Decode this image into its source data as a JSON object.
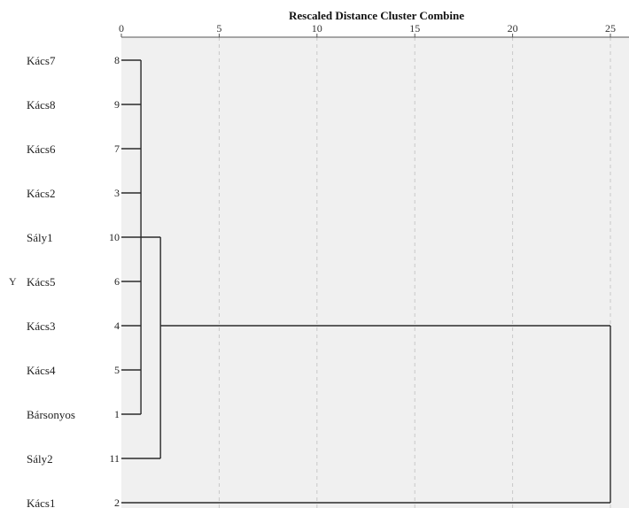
{
  "chart_data": {
    "type": "dendrogram",
    "title": "Rescaled Distance Cluster Combine",
    "y_axis_label": "Y",
    "x_ticks": [
      0,
      5,
      10,
      15,
      20,
      25
    ],
    "xlim": [
      0,
      25
    ],
    "grid": "vertical dashed",
    "leaves": [
      {
        "label": "Kács7",
        "case": 8
      },
      {
        "label": "Kács8",
        "case": 9
      },
      {
        "label": "Kács6",
        "case": 7
      },
      {
        "label": "Kács2",
        "case": 3
      },
      {
        "label": "Sály1",
        "case": 10
      },
      {
        "label": "Kács5",
        "case": 6
      },
      {
        "label": "Kács3",
        "case": 4
      },
      {
        "label": "Kács4",
        "case": 5
      },
      {
        "label": "Bársonyos",
        "case": 1
      },
      {
        "label": "Sály2",
        "case": 11
      },
      {
        "label": "Kács1",
        "case": 2
      }
    ],
    "merges": [
      {
        "leaves": [
          0,
          1,
          2,
          3,
          4,
          5,
          6,
          7,
          8
        ],
        "distance": 1,
        "connect_at": [
          4
        ]
      },
      {
        "leaves": [
          0,
          1,
          2,
          3,
          4,
          5,
          6,
          7,
          8,
          9
        ],
        "distance": 2,
        "connect_at": [
          4,
          9
        ]
      },
      {
        "leaves": [
          0,
          1,
          2,
          3,
          4,
          5,
          6,
          7,
          8,
          9,
          10
        ],
        "distance": 25,
        "connect_at": [
          6,
          10
        ]
      }
    ]
  },
  "colors": {
    "plot_background": "#f0f0f0",
    "line": "#2b2b2b",
    "grid": "#c8c8c8"
  }
}
